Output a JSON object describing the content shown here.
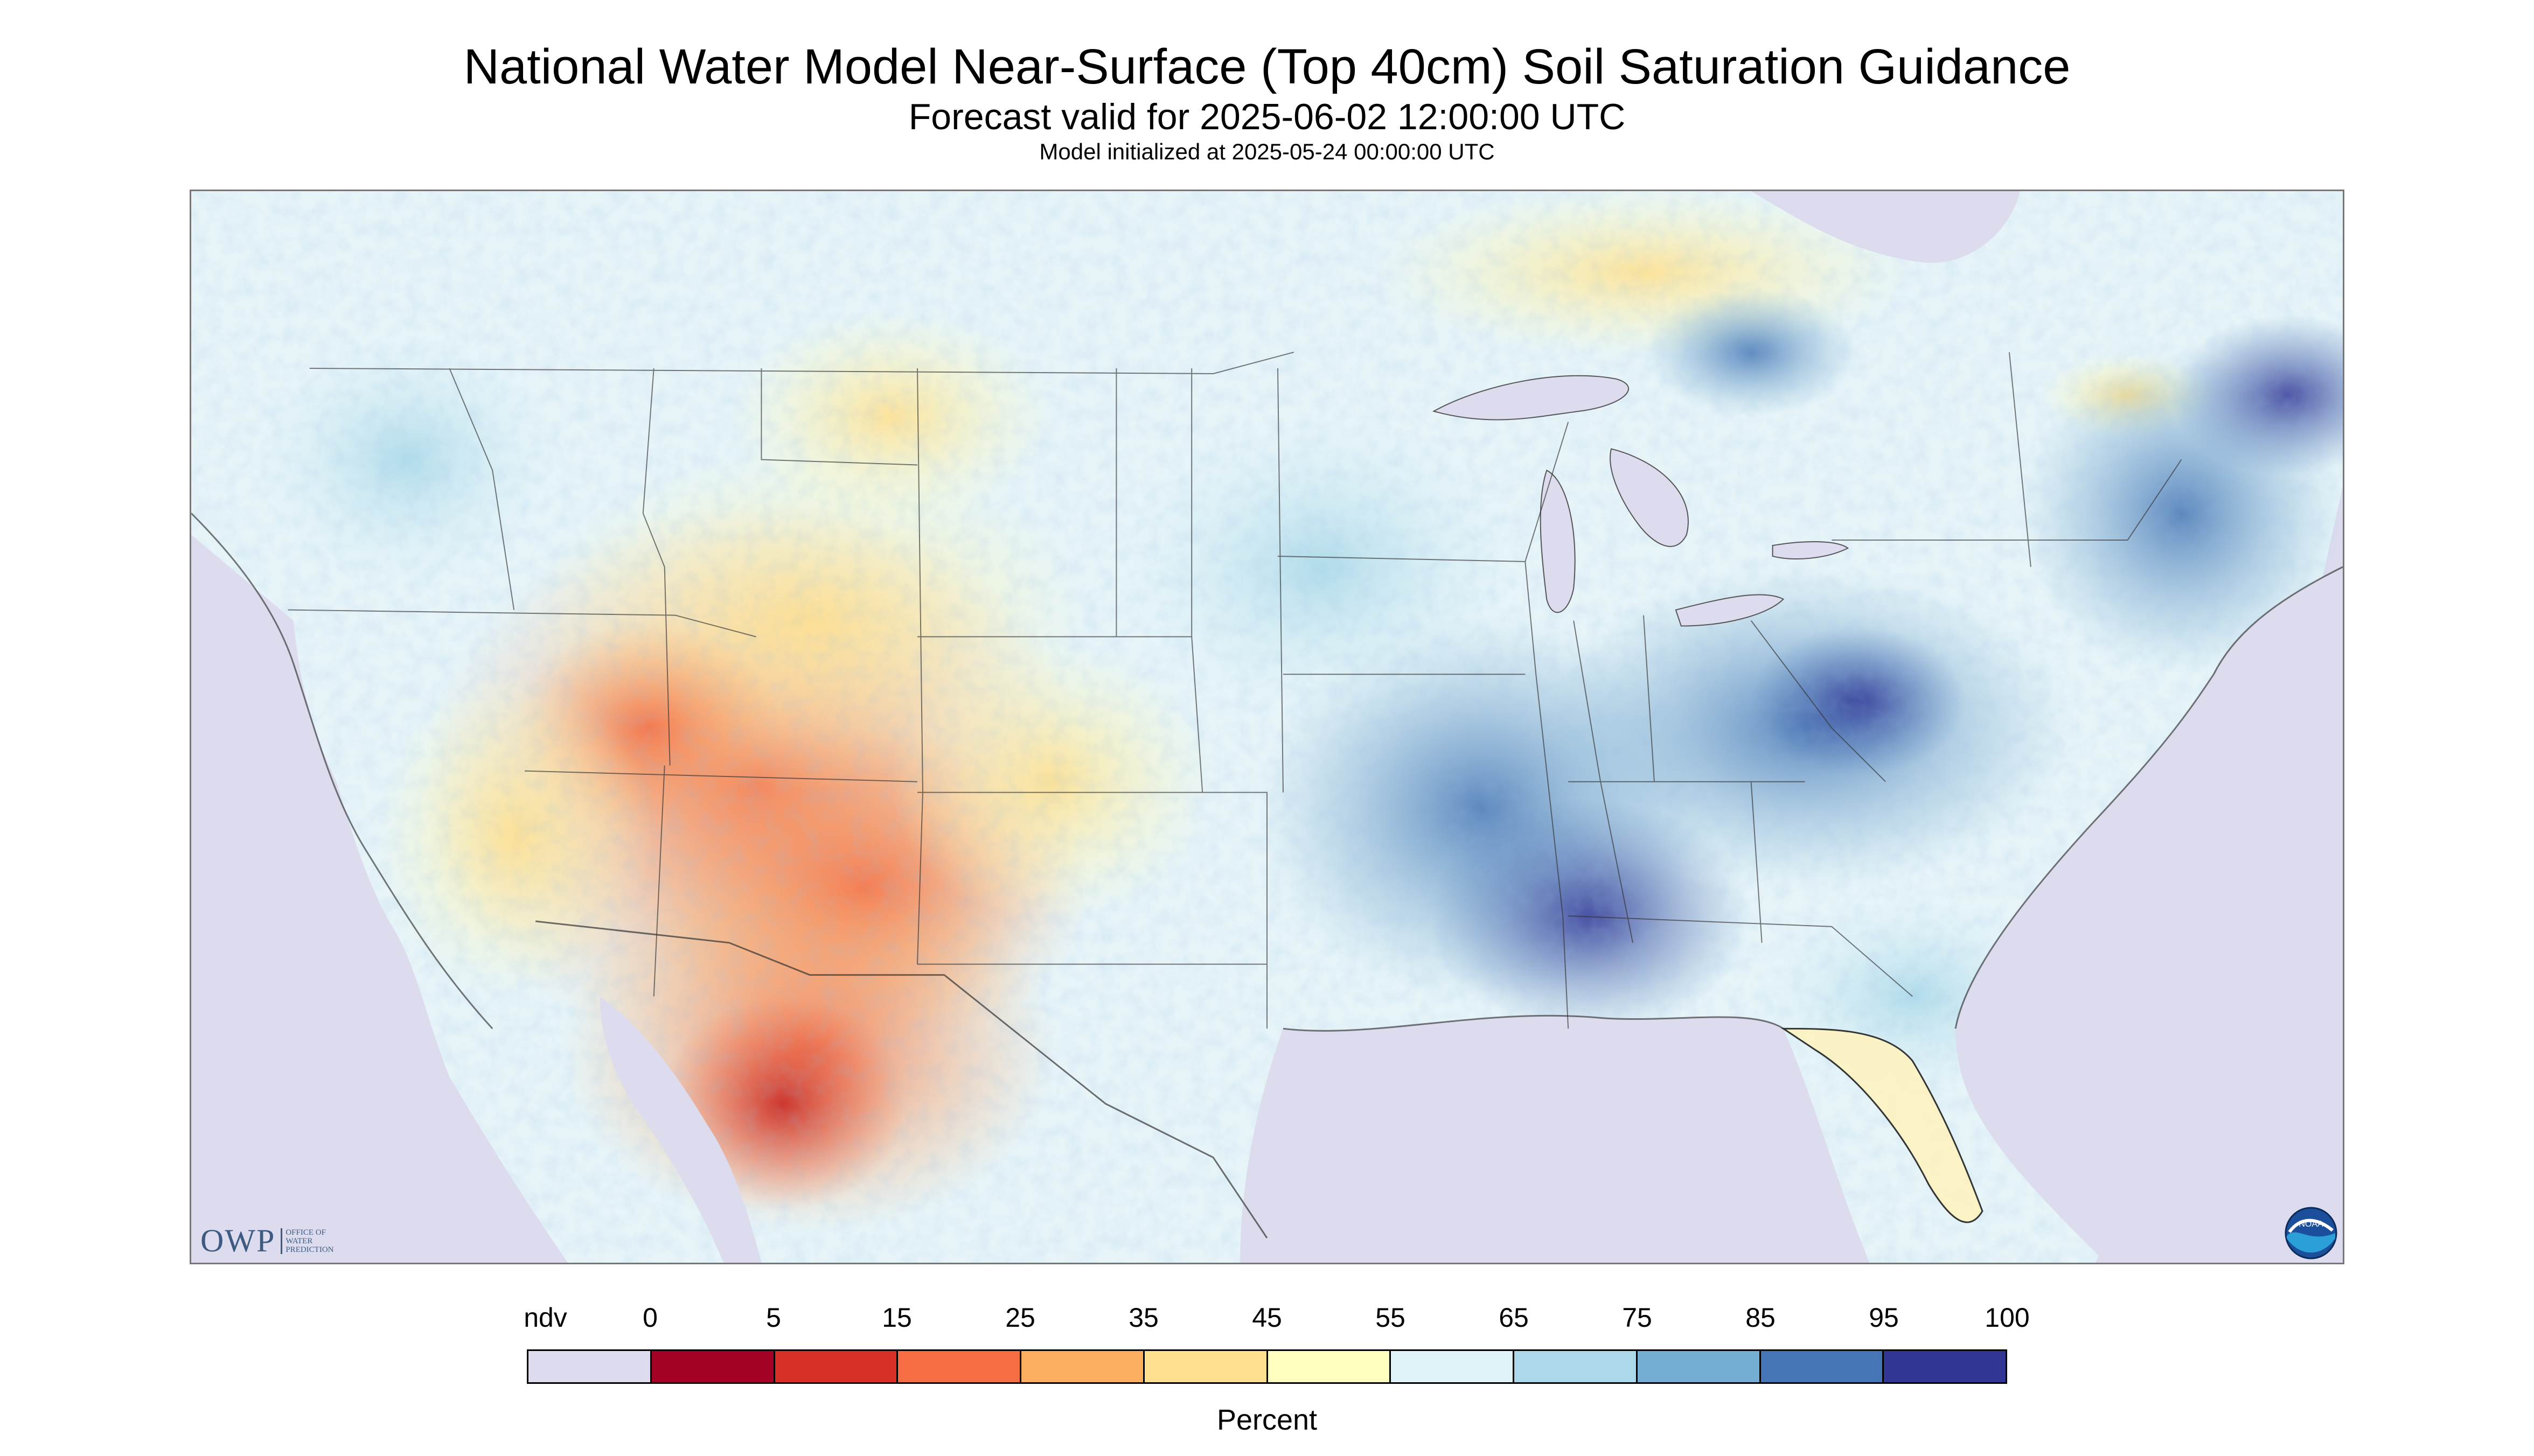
{
  "title": "National Water Model Near-Surface (Top 40cm) Soil Saturation Guidance",
  "subtitle": "Forecast valid for 2025-06-02 12:00:00 UTC",
  "init_line": "Model initialized at 2025-05-24 00:00:00 UTC",
  "legend": {
    "label": "Percent",
    "ticks": [
      "ndv",
      "0",
      "5",
      "15",
      "25",
      "35",
      "45",
      "55",
      "65",
      "75",
      "85",
      "95",
      "100"
    ],
    "colors": [
      "#dcdcee",
      "#a50026",
      "#d73027",
      "#f46d43",
      "#fdae61",
      "#fee090",
      "#ffffbf",
      "#e0f3f8",
      "#abd9e9",
      "#74add1",
      "#4575b4",
      "#313695"
    ]
  },
  "logos": {
    "owp_text": "OWP",
    "owp_small": [
      "OFFICE OF",
      "WATER",
      "PREDICTION"
    ],
    "noaa_text": "NOAA"
  },
  "icons": {
    "owp": "owp-logo-icon",
    "noaa": "noaa-logo-icon"
  }
}
